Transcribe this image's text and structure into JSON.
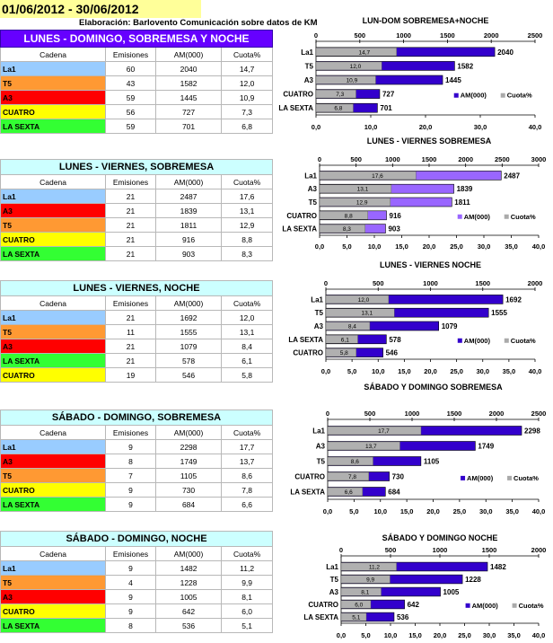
{
  "header": {
    "date_range": "01/06/2012 - 30/06/2012",
    "source": "Elaboración: Barlovento Comunicación sobre datos de KM"
  },
  "colors": {
    "La1": "#99ccff",
    "T5": "#ff9933",
    "A3": "#ff0000",
    "CUATRO": "#ffff00",
    "LA SEXTA": "#33ff33",
    "am_bar": "#3300cc",
    "am_bar_light": "#9966ff",
    "cuota_bar": "#aaaaaa"
  },
  "columns": [
    "Cadena",
    "Emisiones",
    "AM(000)",
    "Cuota%"
  ],
  "tables": [
    {
      "title": "LUNES - DOMINGO, SOBREMESA Y NOCHE",
      "rows": [
        {
          "cadena": "La1",
          "emisiones": "60",
          "am": "2040",
          "cuota": "14,7"
        },
        {
          "cadena": "T5",
          "emisiones": "43",
          "am": "1582",
          "cuota": "12,0"
        },
        {
          "cadena": "A3",
          "emisiones": "59",
          "am": "1445",
          "cuota": "10,9"
        },
        {
          "cadena": "CUATRO",
          "emisiones": "56",
          "am": "727",
          "cuota": "7,3"
        },
        {
          "cadena": "LA SEXTA",
          "emisiones": "59",
          "am": "701",
          "cuota": "6,8"
        }
      ]
    },
    {
      "title": "LUNES - VIERNES, SOBREMESA",
      "rows": [
        {
          "cadena": "La1",
          "emisiones": "21",
          "am": "2487",
          "cuota": "17,6"
        },
        {
          "cadena": "A3",
          "emisiones": "21",
          "am": "1839",
          "cuota": "13,1"
        },
        {
          "cadena": "T5",
          "emisiones": "21",
          "am": "1811",
          "cuota": "12,9"
        },
        {
          "cadena": "CUATRO",
          "emisiones": "21",
          "am": "916",
          "cuota": "8,8"
        },
        {
          "cadena": "LA SEXTA",
          "emisiones": "21",
          "am": "903",
          "cuota": "8,3"
        }
      ]
    },
    {
      "title": "LUNES - VIERNES, NOCHE",
      "rows": [
        {
          "cadena": "La1",
          "emisiones": "21",
          "am": "1692",
          "cuota": "12,0"
        },
        {
          "cadena": "T5",
          "emisiones": "11",
          "am": "1555",
          "cuota": "13,1"
        },
        {
          "cadena": "A3",
          "emisiones": "21",
          "am": "1079",
          "cuota": "8,4"
        },
        {
          "cadena": "LA SEXTA",
          "emisiones": "21",
          "am": "578",
          "cuota": "6,1"
        },
        {
          "cadena": "CUATRO",
          "emisiones": "19",
          "am": "546",
          "cuota": "5,8"
        }
      ]
    },
    {
      "title": "SÁBADO - DOMINGO, SOBREMESA",
      "rows": [
        {
          "cadena": "La1",
          "emisiones": "9",
          "am": "2298",
          "cuota": "17,7"
        },
        {
          "cadena": "A3",
          "emisiones": "8",
          "am": "1749",
          "cuota": "13,7"
        },
        {
          "cadena": "T5",
          "emisiones": "7",
          "am": "1105",
          "cuota": "8,6"
        },
        {
          "cadena": "CUATRO",
          "emisiones": "9",
          "am": "730",
          "cuota": "7,8"
        },
        {
          "cadena": "LA SEXTA",
          "emisiones": "9",
          "am": "684",
          "cuota": "6,6"
        }
      ]
    },
    {
      "title": "SÁBADO - DOMINGO, NOCHE",
      "rows": [
        {
          "cadena": "La1",
          "emisiones": "9",
          "am": "1482",
          "cuota": "11,2"
        },
        {
          "cadena": "T5",
          "emisiones": "4",
          "am": "1228",
          "cuota": "9,9"
        },
        {
          "cadena": "A3",
          "emisiones": "9",
          "am": "1005",
          "cuota": "8,1"
        },
        {
          "cadena": "CUATRO",
          "emisiones": "9",
          "am": "642",
          "cuota": "6,0"
        },
        {
          "cadena": "LA SEXTA",
          "emisiones": "8",
          "am": "536",
          "cuota": "5,1"
        }
      ]
    }
  ],
  "chart_data": [
    {
      "type": "bar",
      "title": "LUN-DOM SOBREMESA+NOCHE",
      "categories": [
        "La1",
        "T5",
        "A3",
        "CUATRO",
        "LA SEXTA"
      ],
      "series": [
        {
          "name": "AM(000)",
          "values": [
            2040,
            1582,
            1445,
            727,
            701
          ],
          "value_labels": [
            "2040",
            "1582",
            "1445",
            "727",
            "701"
          ]
        },
        {
          "name": "Cuota%",
          "values": [
            14.7,
            12.0,
            10.9,
            7.3,
            6.8
          ],
          "value_labels": [
            "14,7",
            "12,0",
            "10,9",
            "7,3",
            "6,8"
          ]
        }
      ],
      "top_axis": {
        "max": 2500,
        "ticks": [
          "0",
          "500",
          "1000",
          "1500",
          "2000",
          "2500"
        ]
      },
      "bottom_axis": {
        "max": 40,
        "ticks": [
          "0,0",
          "10,0",
          "20,0",
          "30,0",
          "40,0"
        ]
      },
      "legend": "inside-right"
    },
    {
      "type": "bar",
      "title": "LUNES - VIERNES SOBREMESA",
      "categories": [
        "La1",
        "A3",
        "T5",
        "CUATRO",
        "LA SEXTA"
      ],
      "series": [
        {
          "name": "AM(000)",
          "values": [
            2487,
            1839,
            1811,
            916,
            903
          ],
          "value_labels": [
            "2487",
            "1839",
            "1811",
            "916",
            "903"
          ]
        },
        {
          "name": "Cuota%",
          "values": [
            17.6,
            13.1,
            12.9,
            8.8,
            8.3
          ],
          "value_labels": [
            "17,6",
            "13,1",
            "12,9",
            "8,8",
            "8,3"
          ]
        }
      ],
      "top_axis": {
        "max": 3000,
        "ticks": [
          "0",
          "500",
          "1000",
          "1500",
          "2000",
          "2500",
          "3000"
        ]
      },
      "bottom_axis": {
        "max": 40,
        "ticks": [
          "0,0",
          "5,0",
          "10,0",
          "15,0",
          "20,0",
          "25,0",
          "30,0",
          "35,0",
          "40,0"
        ]
      },
      "legend": "inside-right"
    },
    {
      "type": "bar",
      "title": "LUNES - VIERNES  NOCHE",
      "categories": [
        "La1",
        "T5",
        "A3",
        "LA SEXTA",
        "CUATRO"
      ],
      "series": [
        {
          "name": "AM(000)",
          "values": [
            1692,
            1555,
            1079,
            578,
            546
          ],
          "value_labels": [
            "1692",
            "1555",
            "1079",
            "578",
            "546"
          ]
        },
        {
          "name": "Cuota%",
          "values": [
            12.0,
            13.1,
            8.4,
            6.1,
            5.8
          ],
          "value_labels": [
            "12,0",
            "13,1",
            "8,4",
            "6,1",
            "5,8"
          ]
        }
      ],
      "top_axis": {
        "max": 2000,
        "ticks": [
          "0",
          "500",
          "1000",
          "1500",
          "2000"
        ]
      },
      "bottom_axis": {
        "max": 40,
        "ticks": [
          "0,0",
          "5,0",
          "10,0",
          "15,0",
          "20,0",
          "25,0",
          "30,0",
          "35,0",
          "40,0"
        ]
      },
      "legend": "inside-right"
    },
    {
      "type": "bar",
      "title": "SÁBADO Y DOMINGO SOBREMESA",
      "categories": [
        "La1",
        "A3",
        "T5",
        "CUATRO",
        "LA SEXTA"
      ],
      "series": [
        {
          "name": "AM(000)",
          "values": [
            2298,
            1749,
            1105,
            730,
            684
          ],
          "value_labels": [
            "2298",
            "1749",
            "1105",
            "730",
            "684"
          ]
        },
        {
          "name": "Cuota%",
          "values": [
            17.7,
            13.7,
            8.6,
            7.8,
            6.6
          ],
          "value_labels": [
            "17,7",
            "13,7",
            "8,6",
            "7,8",
            "6,6"
          ]
        }
      ],
      "top_axis": {
        "max": 2500,
        "ticks": [
          "0",
          "500",
          "1000",
          "1500",
          "2000",
          "2500"
        ]
      },
      "bottom_axis": {
        "max": 40,
        "ticks": [
          "0,0",
          "5,0",
          "10,0",
          "15,0",
          "20,0",
          "25,0",
          "30,0",
          "35,0",
          "40,0"
        ]
      },
      "legend": "inside-right"
    },
    {
      "type": "bar",
      "title": "SÁBADO Y DOMINGO  NOCHE",
      "categories": [
        "La1",
        "T5",
        "A3",
        "CUATRO",
        "LA SEXTA"
      ],
      "series": [
        {
          "name": "AM(000)",
          "values": [
            1482,
            1228,
            1005,
            642,
            536
          ],
          "value_labels": [
            "1482",
            "1228",
            "1005",
            "642",
            "536"
          ]
        },
        {
          "name": "Cuota%",
          "values": [
            11.2,
            9.9,
            8.1,
            6.0,
            5.1
          ],
          "value_labels": [
            "11,2",
            "9,9",
            "8,1",
            "6,0",
            "5,1"
          ]
        }
      ],
      "top_axis": {
        "max": 2000,
        "ticks": [
          "0",
          "500",
          "1000",
          "1500",
          "2000"
        ]
      },
      "bottom_axis": {
        "max": 40,
        "ticks": [
          "0,0",
          "5,0",
          "10,0",
          "15,0",
          "20,0",
          "25,0",
          "30,0",
          "35,0",
          "40,0"
        ]
      },
      "legend": "inside-right"
    }
  ]
}
